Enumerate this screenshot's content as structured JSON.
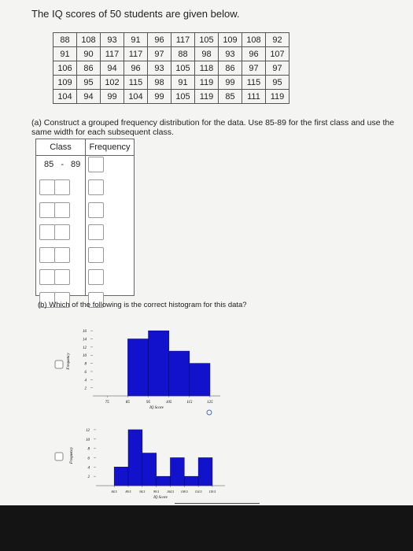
{
  "header": "The IQ scores of 50 students are given below.",
  "table": {
    "rows": [
      [
        88,
        108,
        93,
        91,
        96,
        117,
        105,
        109,
        108,
        92
      ],
      [
        91,
        90,
        117,
        117,
        97,
        88,
        98,
        93,
        96,
        107
      ],
      [
        106,
        86,
        94,
        96,
        93,
        105,
        118,
        86,
        97,
        97
      ],
      [
        109,
        95,
        102,
        115,
        98,
        91,
        119,
        99,
        115,
        95
      ],
      [
        104,
        94,
        99,
        104,
        99,
        105,
        119,
        85,
        111,
        119
      ]
    ]
  },
  "part_a": "(a) Construct a grouped frequency distribution for the data. Use 85-89 for the first class and use the same width for each subsequent class.",
  "freq_table": {
    "headers": [
      "Class",
      "Frequency"
    ],
    "first_class": {
      "lower": 85,
      "sep": "-",
      "upper": 89
    }
  },
  "part_b": "(b) Which of the following is the correct histogram for this data?",
  "chart_data": [
    {
      "type": "histogram",
      "bins": [
        85,
        95,
        105,
        115,
        125
      ],
      "values": [
        14,
        16,
        11,
        8
      ],
      "color": "#1212cc",
      "xlabel": "IQ Score",
      "ylabel": "Frequency",
      "xlim": [
        68,
        130
      ],
      "xticks": [
        75,
        85,
        95,
        105,
        115,
        125
      ],
      "ylim": [
        0,
        17
      ],
      "yticks": [
        2,
        4,
        6,
        8,
        10,
        12,
        14,
        16
      ]
    },
    {
      "type": "histogram",
      "bins": [
        84.5,
        89.5,
        94.5,
        99.5,
        104.5,
        109.5,
        114.5,
        119.5
      ],
      "values": [
        4,
        12,
        7,
        2,
        6,
        2,
        6
      ],
      "color": "#1212cc",
      "xlabel": "IQ Score",
      "ylabel": "Frequency",
      "xlim": [
        78,
        124
      ],
      "xticks": [
        84.5,
        89.5,
        94.5,
        99.5,
        104.5,
        109.5,
        114.5,
        119.5
      ],
      "ylim": [
        0,
        13
      ],
      "yticks": [
        2,
        4,
        6,
        8,
        10,
        12
      ]
    }
  ]
}
